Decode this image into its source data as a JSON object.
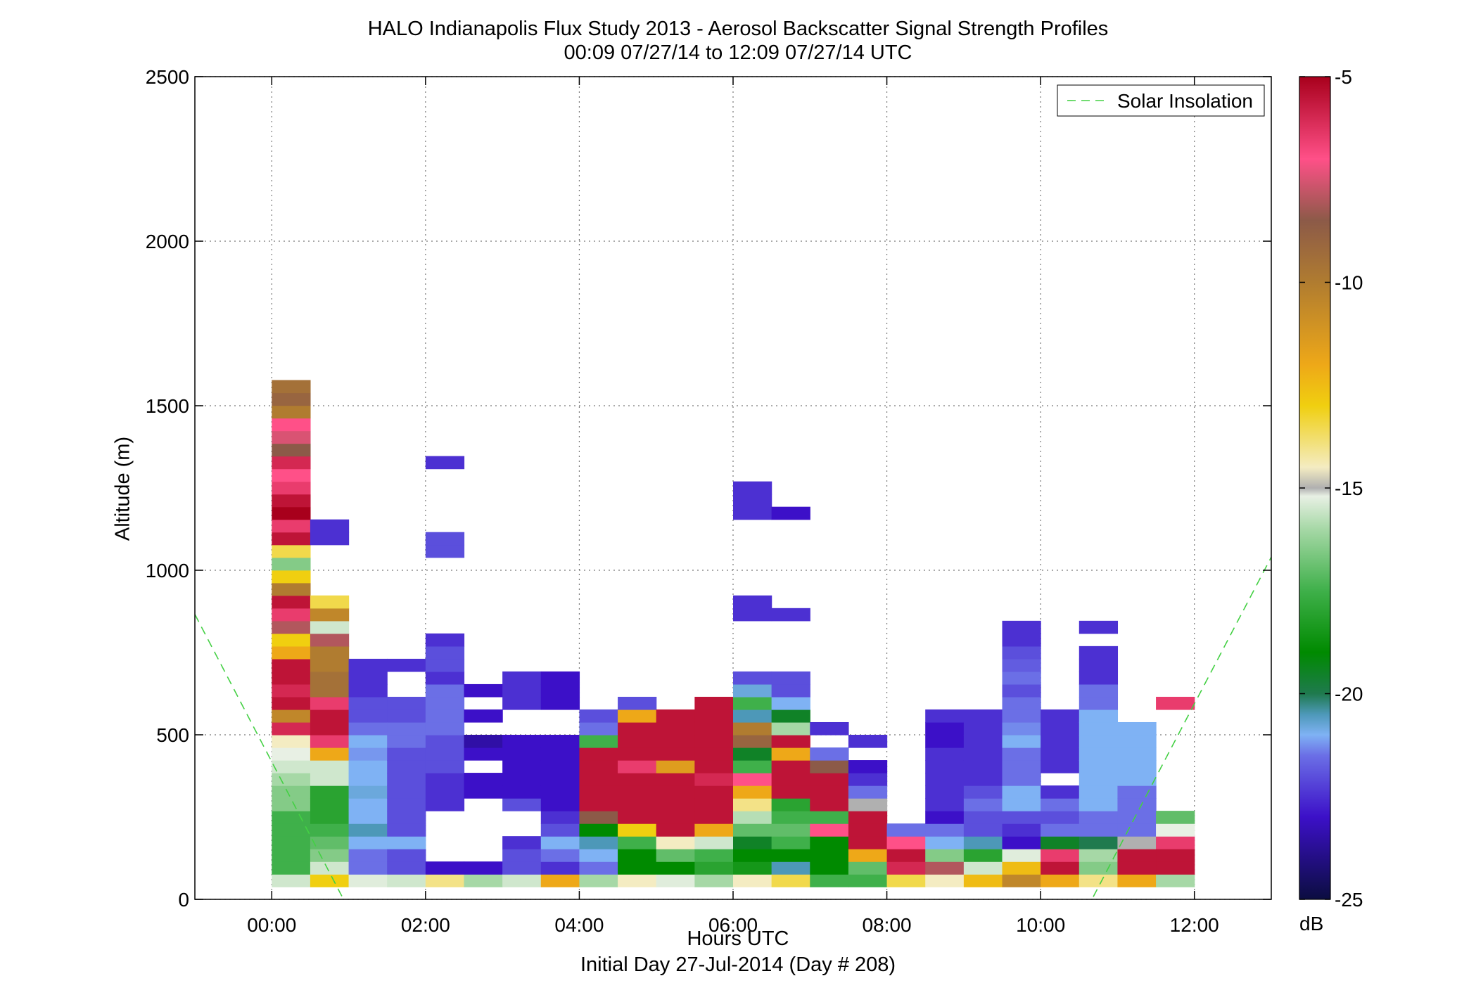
{
  "chart_data": {
    "type": "heatmap",
    "title": "HALO Indianapolis Flux Study 2013 - Aerosol Backscatter Signal Strength Profiles",
    "subtitle": "00:09 07/27/14 to 12:09 07/27/14  UTC",
    "xlabel": "Hours UTC",
    "xsublabel": "Initial Day 27-Jul-2014 (Day # 208)",
    "ylabel": "Altitude (m)",
    "xlim": [
      -1,
      13
    ],
    "ylim": [
      0,
      2500
    ],
    "xticks": [
      0,
      2,
      4,
      6,
      8,
      10,
      12
    ],
    "xtick_labels": [
      "00:00",
      "02:00",
      "04:00",
      "06:00",
      "08:00",
      "10:00",
      "12:00"
    ],
    "yticks": [
      0,
      500,
      1000,
      1500,
      2000,
      2500
    ],
    "ytick_labels": [
      "0",
      "500",
      "1000",
      "1500",
      "2000",
      "2500"
    ],
    "grid": true,
    "legend": {
      "placement": "top-right",
      "entries": [
        "Solar Insolation"
      ]
    },
    "colorbar": {
      "range": [
        -25,
        -5
      ],
      "ticks": [
        -5,
        -10,
        -15,
        -20,
        -25
      ],
      "tick_labels": [
        "-5",
        "-10",
        "-15",
        "-20",
        "-25"
      ],
      "units": "dB",
      "stops": [
        [
          -25,
          "#0b0d40"
        ],
        [
          -23,
          "#3c10c8"
        ],
        [
          -21.5,
          "#6b6fe6"
        ],
        [
          -21,
          "#7fb2f4"
        ],
        [
          -20.5,
          "#4d98b8"
        ],
        [
          -20,
          "#1f7a4e"
        ],
        [
          -19,
          "#008a00"
        ],
        [
          -17.5,
          "#3fb04a"
        ],
        [
          -16,
          "#a6d8a6"
        ],
        [
          -15.2,
          "#e8f0e4"
        ],
        [
          -15,
          "#b0b0b0"
        ],
        [
          -14.5,
          "#f4ecc2"
        ],
        [
          -13,
          "#f0cf10"
        ],
        [
          -12,
          "#eea818"
        ],
        [
          -10,
          "#b07c30"
        ],
        [
          -8.5,
          "#8c5a48"
        ],
        [
          -7,
          "#ff5088"
        ],
        [
          -5,
          "#a8001c"
        ]
      ]
    },
    "solar_insolation": [
      [
        -1,
        866
      ],
      [
        1,
        -30
      ],
      [
        10.6,
        -30
      ],
      [
        13,
        1040
      ]
    ],
    "gate_height_m": 38.5,
    "base_altitude_m": 38,
    "time_step_h": 0.5,
    "profiles": [
      {
        "t": 0.25,
        "db": [
          -15.5,
          -17.5,
          -17.5,
          -17.5,
          -17.5,
          -17.5,
          -16.5,
          -16.5,
          -16,
          -15.5,
          -15.2,
          -14.5,
          -6,
          -10.5,
          -5.5,
          -6,
          -5.5,
          -5.5,
          -12,
          -13,
          -8,
          -6.5,
          -5.5,
          -10,
          -13,
          -16.5,
          -13.5,
          -5.5,
          -6.5,
          -5,
          -5.5,
          -6.5,
          -7,
          -6,
          -8.5,
          -7.5,
          -7,
          -10,
          -9,
          -9.5
        ]
      },
      {
        "t": 0.75,
        "db": [
          -13,
          -15.5,
          -16.5,
          -17,
          -17.5,
          -18,
          -18,
          -18,
          -15.5,
          -15.5,
          -12,
          -6.5,
          -5.5,
          -5.5,
          -6.5,
          -9.5,
          -9.5,
          -10,
          -10,
          -8,
          -15.5,
          -10.5,
          -13.5,
          null,
          null,
          null,
          null,
          -22.5,
          -22.5
        ]
      },
      {
        "t": 1.25,
        "db": [
          -15.3,
          -21.5,
          -21.5,
          -21,
          -20.5,
          -21,
          -21,
          -20.8,
          -21,
          -21,
          -21.2,
          -21,
          -21.5,
          -22,
          -22,
          -22.5,
          -22.5,
          -22.5
        ]
      },
      {
        "t": 1.75,
        "db": [
          -15.5,
          -22,
          -22,
          -21,
          -22,
          -22,
          -22,
          -22,
          -22,
          -22,
          -22,
          -21.5,
          -21.5,
          -22,
          -22,
          null,
          null,
          -22.5
        ]
      },
      {
        "t": 2.25,
        "db": [
          -14,
          -23,
          null,
          null,
          null,
          null,
          -22.5,
          -22.5,
          -22.5,
          -22,
          -22,
          -22,
          -21.5,
          -21.5,
          -21.5,
          -21.5,
          -22.5,
          -22,
          -22,
          -22.5,
          null,
          null,
          null,
          null,
          null,
          null,
          -22,
          -22,
          null,
          null,
          null,
          null,
          null,
          -22.5
        ]
      },
      {
        "t": 2.75,
        "db": [
          -16,
          -23,
          null,
          null,
          null,
          null,
          null,
          -23,
          -23,
          null,
          -23,
          -23.5,
          null,
          -23,
          null,
          -23
        ]
      },
      {
        "t": 3.25,
        "db": [
          -15.5,
          -22,
          -22,
          -22.5,
          null,
          null,
          -22,
          -23,
          -23,
          -23,
          -23,
          -23,
          null,
          null,
          -22.5,
          -22.5,
          -22.5
        ]
      },
      {
        "t": 3.75,
        "db": [
          -12,
          -22.5,
          -21.5,
          -21,
          -22,
          -22.5,
          -23,
          -23,
          -23,
          -23,
          -23,
          -23,
          null,
          null,
          -23,
          -23,
          -23
        ]
      },
      {
        "t": 4.25,
        "db": [
          -16,
          -21.5,
          -21,
          -20.5,
          -19,
          -8.5,
          -5.5,
          -5.5,
          -5.5,
          -5.5,
          -5.5,
          -17.5,
          -21.5,
          -22
        ]
      },
      {
        "t": 4.75,
        "db": [
          -14.5,
          -19,
          -19,
          -17.5,
          -13,
          -5.5,
          -5.5,
          -5.5,
          -5.5,
          -6.5,
          -5.5,
          -5.5,
          -5.5,
          -12,
          -22
        ]
      },
      {
        "t": 5.25,
        "db": [
          -15.3,
          -19,
          -17,
          -14.5,
          -5.5,
          -5.5,
          -5.5,
          -5.5,
          -5.5,
          -11.5,
          -5.5,
          -5.5,
          -5.5,
          -5.5
        ]
      },
      {
        "t": 5.75,
        "db": [
          -16,
          -18,
          -17.5,
          -15.5,
          -12,
          -5.5,
          -5.5,
          -5.5,
          -6,
          -5.5,
          -5.5,
          -5.5,
          -5.5,
          -5.5,
          -5.5
        ]
      },
      {
        "t": 6.25,
        "db": [
          -14.5,
          -18.5,
          -19,
          -19.5,
          -17,
          -15.8,
          -14,
          -12,
          -7,
          -17.5,
          -19.5,
          -9,
          -10,
          -20.5,
          -17.5,
          -20.8,
          -22,
          null,
          null,
          null,
          null,
          -22.5,
          -22.5,
          null,
          null,
          null,
          null,
          null,
          null,
          -22.5,
          -22.5,
          -22.5
        ]
      },
      {
        "t": 6.75,
        "db": [
          -13.5,
          -20.5,
          -19,
          -17.5,
          -17,
          -17.5,
          -18,
          -5.5,
          -5.5,
          -5.5,
          -12,
          -5.5,
          -16,
          -19.5,
          -21,
          -22,
          -22,
          null,
          null,
          null,
          null,
          -22.5,
          null,
          null,
          null,
          null,
          null,
          null,
          null,
          -23
        ]
      },
      {
        "t": 7.25,
        "db": [
          -17.5,
          -19,
          -19,
          -19,
          -7,
          -17.5,
          -5.5,
          -5.5,
          -5.5,
          -8.5,
          -21.5,
          null,
          -22.5
        ]
      },
      {
        "t": 7.75,
        "db": [
          -17.5,
          -17,
          -12,
          -5.5,
          -5.5,
          -5.5,
          -15,
          -21.5,
          -22.5,
          -23,
          null,
          -22.5
        ]
      },
      {
        "t": 8.25,
        "db": [
          -13.5,
          -6,
          -5.5,
          -7,
          -21.5
        ]
      },
      {
        "t": 8.75,
        "db": [
          -14.5,
          -8,
          -16.5,
          -21,
          -21.5,
          -23,
          -22.5,
          -22.5,
          -22.5,
          -22.5,
          -22.5,
          -23,
          -23,
          -22.5
        ]
      },
      {
        "t": 9.25,
        "db": [
          -12.5,
          -15.5,
          -18,
          -20.5,
          -22,
          -22,
          -21.5,
          -22,
          -22.5,
          -22.5,
          -22.5,
          -22.5,
          -22.5,
          -22.5
        ]
      },
      {
        "t": 9.75,
        "db": [
          -10.5,
          -12.5,
          -15.3,
          -23,
          -22.5,
          -22,
          -21,
          -21,
          -21.5,
          -21.5,
          -21.5,
          -21,
          -21.3,
          -21.5,
          -21.5,
          -22,
          -21.5,
          -21.8,
          -22,
          -22.5,
          -22.5
        ]
      },
      {
        "t": 10.25,
        "db": [
          -12,
          -5.5,
          -6.5,
          -19.5,
          -21.5,
          -22,
          -21.5,
          -22.5,
          null,
          -22.5,
          -22.5,
          -22.5,
          -22.5,
          -22.5
        ]
      },
      {
        "t": 10.75,
        "db": [
          -14,
          -16.5,
          -16,
          -20,
          -21.5,
          -21.5,
          -21,
          -21,
          -21,
          -21,
          -21,
          -21,
          -21,
          -21,
          -21.5,
          -21.5,
          -22.5,
          -22.5,
          -22.5,
          null,
          -22.5
        ]
      },
      {
        "t": 11.25,
        "db": [
          -12,
          -5.5,
          -5.5,
          -15,
          -21.5,
          -21.5,
          -21.5,
          -21.5,
          -21,
          -21,
          -21,
          -21,
          -21
        ]
      },
      {
        "t": 11.75,
        "db": [
          -16,
          -5.5,
          -5.5,
          -6.5,
          -15.2,
          -17,
          null,
          null,
          null,
          null,
          null,
          null,
          null,
          null,
          -6.5
        ]
      }
    ]
  }
}
